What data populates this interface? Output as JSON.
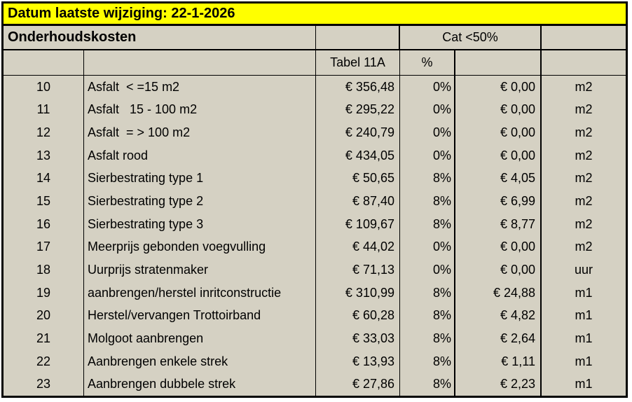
{
  "banner": {
    "text": "Datum laatste wijziging: 22-1-2026"
  },
  "header": {
    "title": "Onderhoudskosten",
    "cat_label": "Cat <50%",
    "table_label": "Tabel 11A",
    "percent_label": "%"
  },
  "colors": {
    "banner_bg": "#ffff00",
    "cell_bg": "#d5d1c3",
    "border": "#000000",
    "text": "#000000"
  },
  "rows": [
    {
      "nr": "10",
      "desc": "Asfalt  < =15 m2",
      "price": "€ 356,48",
      "pct": "0%",
      "amount": "€ 0,00",
      "unit": "m2"
    },
    {
      "nr": "11",
      "desc": "Asfalt   15 - 100 m2",
      "price": "€ 295,22",
      "pct": "0%",
      "amount": "€ 0,00",
      "unit": "m2"
    },
    {
      "nr": "12",
      "desc": "Asfalt  = > 100 m2",
      "price": "€ 240,79",
      "pct": "0%",
      "amount": "€ 0,00",
      "unit": "m2"
    },
    {
      "nr": "13",
      "desc": "Asfalt rood",
      "price": "€ 434,05",
      "pct": "0%",
      "amount": "€ 0,00",
      "unit": "m2"
    },
    {
      "nr": "14",
      "desc": "Sierbestrating type 1",
      "price": "€ 50,65",
      "pct": "8%",
      "amount": "€ 4,05",
      "unit": "m2"
    },
    {
      "nr": "15",
      "desc": "Sierbestrating type 2",
      "price": "€ 87,40",
      "pct": "8%",
      "amount": "€ 6,99",
      "unit": "m2"
    },
    {
      "nr": "16",
      "desc": "Sierbestrating type 3",
      "price": "€ 109,67",
      "pct": "8%",
      "amount": "€ 8,77",
      "unit": "m2"
    },
    {
      "nr": "17",
      "desc": "Meerprijs gebonden voegvulling",
      "price": "€ 44,02",
      "pct": "0%",
      "amount": "€ 0,00",
      "unit": "m2"
    },
    {
      "nr": "18",
      "desc": "Uurprijs stratenmaker",
      "price": "€ 71,13",
      "pct": "0%",
      "amount": "€ 0,00",
      "unit": "uur"
    },
    {
      "nr": "19",
      "desc": "aanbrengen/herstel inritconstructie",
      "price": "€ 310,99",
      "pct": "8%",
      "amount": "€ 24,88",
      "unit": "m1"
    },
    {
      "nr": "20",
      "desc": "Herstel/vervangen Trottoirband",
      "price": "€ 60,28",
      "pct": "8%",
      "amount": "€ 4,82",
      "unit": "m1"
    },
    {
      "nr": "21",
      "desc": "Molgoot aanbrengen",
      "price": "€ 33,03",
      "pct": "8%",
      "amount": "€ 2,64",
      "unit": "m1"
    },
    {
      "nr": "22",
      "desc": "Aanbrengen enkele strek",
      "price": "€ 13,93",
      "pct": "8%",
      "amount": "€ 1,11",
      "unit": "m1"
    },
    {
      "nr": "23",
      "desc": "Aanbrengen dubbele strek",
      "price": "€ 27,86",
      "pct": "8%",
      "amount": "€ 2,23",
      "unit": "m1"
    }
  ]
}
